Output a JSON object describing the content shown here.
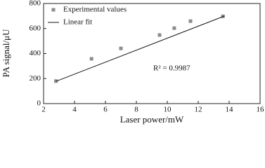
{
  "chart_data": {
    "type": "scatter",
    "xlabel": "Laser power/mW",
    "ylabel": "PA signal/μU",
    "series": [
      {
        "name": "Experimental values",
        "color": "#8c8c8c",
        "x": [
          2.8,
          5.1,
          7.0,
          9.5,
          10.45,
          11.5,
          13.6
        ],
        "values": [
          180,
          358,
          441,
          548,
          603,
          659,
          698
        ]
      },
      {
        "name": "Linear fit",
        "type": "line",
        "color": "#111111",
        "x": [
          2.8,
          13.7
        ],
        "values": [
          178,
          700
        ]
      }
    ],
    "annotation": "R² = 0.9987",
    "xlim": [
      2,
      16
    ],
    "xticks": [
      2,
      4,
      6,
      8,
      10,
      12,
      14,
      16
    ],
    "ylim": [
      0,
      800
    ],
    "yticks": [
      0,
      200,
      400,
      600,
      800
    ],
    "legend": "upper left"
  }
}
